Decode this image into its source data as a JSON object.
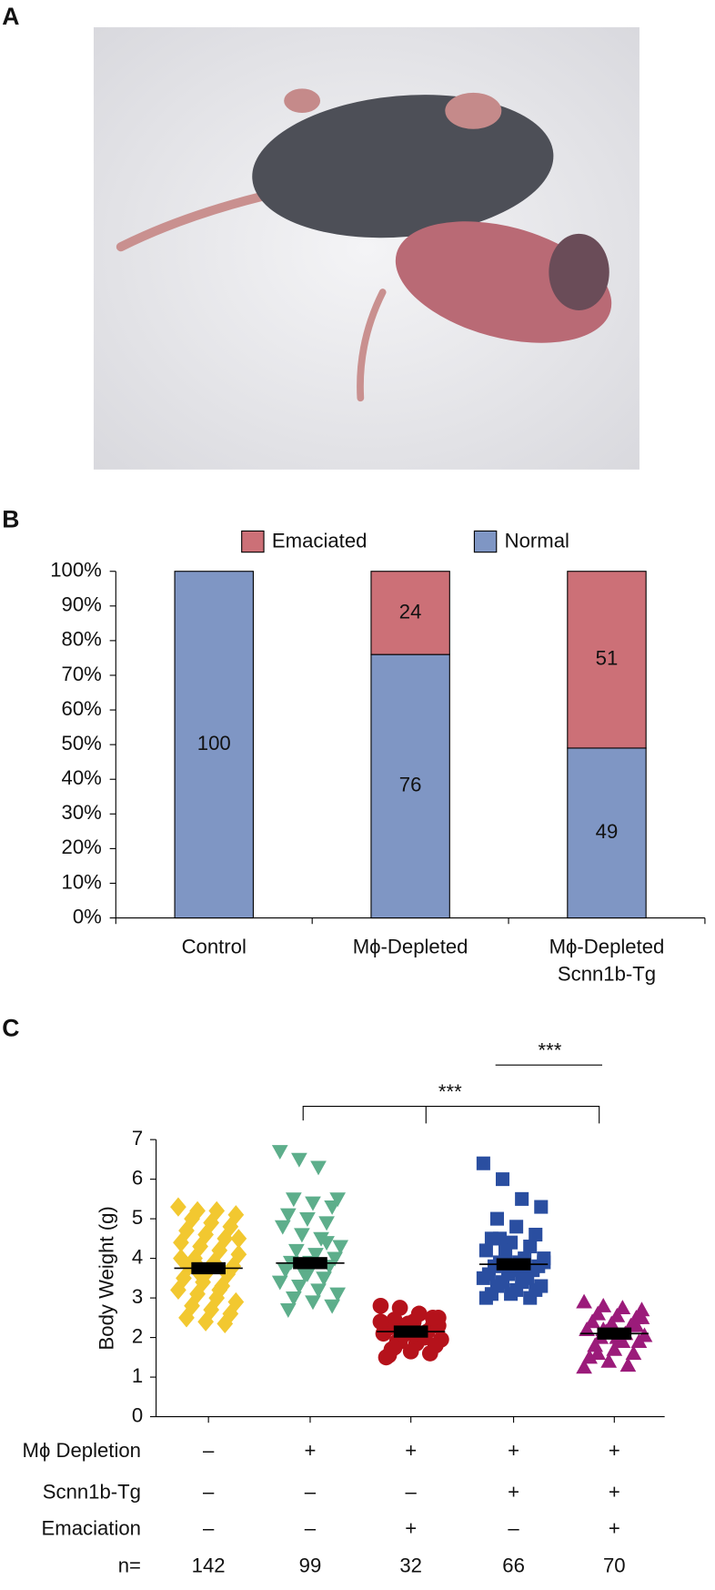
{
  "panel_labels": [
    "A",
    "B",
    "C"
  ],
  "chart_data": [
    {
      "type": "bar",
      "stacked": true,
      "legend_position": "top",
      "categories": [
        [
          "Control"
        ],
        [
          "Mϕ-Depleted"
        ],
        [
          "Mϕ-Depleted",
          "Scnn1b-Tg"
        ]
      ],
      "series": [
        {
          "name": "Normal",
          "color": "#7f96c4",
          "values": [
            100,
            76,
            49
          ]
        },
        {
          "name": "Emaciated",
          "color": "#cc7077",
          "values": [
            0,
            24,
            51
          ]
        }
      ],
      "ylim": [
        0,
        100
      ],
      "yticks": [
        {
          "value": 0,
          "label": "0%"
        },
        {
          "value": 10,
          "label": "10%"
        },
        {
          "value": 20,
          "label": "20%"
        },
        {
          "value": 30,
          "label": "30%"
        },
        {
          "value": 40,
          "label": "40%"
        },
        {
          "value": 50,
          "label": "50%"
        },
        {
          "value": 60,
          "label": "60%"
        },
        {
          "value": 70,
          "label": "70%"
        },
        {
          "value": 80,
          "label": "80%"
        },
        {
          "value": 90,
          "label": "90%"
        },
        {
          "value": 100,
          "label": "100%"
        }
      ]
    },
    {
      "type": "dotplot",
      "ylabel": "Body Weight (g)",
      "ylim": [
        0,
        7
      ],
      "yticks": [
        0,
        1,
        2,
        3,
        4,
        5,
        6,
        7
      ],
      "groups": [
        {
          "marker": "diamond",
          "color": "#f2c830",
          "mean": 3.75,
          "values": [
            5.3,
            5.2,
            5.2,
            5.1,
            5.0,
            4.9,
            4.8,
            4.7,
            4.6,
            4.5,
            4.4,
            4.3,
            4.2,
            4.1,
            4.0,
            3.9,
            3.8,
            3.8,
            3.7,
            3.6,
            3.5,
            3.4,
            3.3,
            3.2,
            3.1,
            3.0,
            2.9,
            2.8,
            2.7,
            2.6,
            2.5,
            2.4,
            2.35,
            4.0,
            3.6,
            3.2,
            4.5,
            3.9
          ]
        },
        {
          "marker": "triangle-down",
          "color": "#5dae8b",
          "mean": 3.88,
          "values": [
            6.7,
            6.5,
            6.3,
            5.5,
            5.5,
            5.4,
            5.3,
            5.1,
            5.0,
            4.9,
            4.8,
            4.6,
            4.5,
            4.3,
            4.2,
            4.1,
            4.0,
            3.9,
            3.9,
            3.8,
            3.7,
            3.6,
            3.5,
            3.4,
            3.3,
            3.2,
            3.1,
            3.0,
            2.9,
            2.8,
            2.7,
            3.6,
            4.4
          ]
        },
        {
          "marker": "circle",
          "color": "#b5121b",
          "mean": 2.15,
          "values": [
            2.8,
            2.75,
            2.6,
            2.5,
            2.45,
            2.4,
            2.3,
            2.25,
            2.2,
            2.15,
            2.1,
            2.05,
            2.0,
            1.95,
            1.9,
            1.85,
            1.8,
            1.7,
            1.65,
            1.6,
            1.5,
            2.2,
            2.0,
            2.4,
            1.9,
            2.6,
            2.3,
            1.75,
            2.1,
            2.5,
            1.55,
            2.35
          ]
        },
        {
          "marker": "square",
          "color": "#2a4ea0",
          "mean": 3.85,
          "values": [
            6.4,
            6.0,
            5.5,
            5.3,
            5.0,
            4.8,
            4.6,
            4.5,
            4.4,
            4.3,
            4.2,
            4.1,
            4.0,
            4.0,
            3.9,
            3.9,
            3.8,
            3.8,
            3.7,
            3.7,
            3.6,
            3.6,
            3.5,
            3.5,
            3.4,
            3.4,
            3.3,
            3.3,
            3.2,
            3.2,
            3.1,
            3.1,
            3.0,
            3.0,
            4.2,
            3.6,
            3.9,
            4.5
          ]
        },
        {
          "marker": "triangle-up",
          "color": "#9b1b7a",
          "mean": 2.1,
          "values": [
            2.9,
            2.8,
            2.75,
            2.7,
            2.6,
            2.55,
            2.5,
            2.4,
            2.35,
            2.3,
            2.2,
            2.15,
            2.1,
            2.05,
            2.0,
            1.95,
            1.9,
            1.8,
            1.7,
            1.6,
            1.5,
            1.4,
            1.3,
            1.25,
            2.2,
            1.9,
            2.5,
            1.6,
            2.0,
            2.3
          ]
        }
      ],
      "significance": [
        "***",
        "***"
      ],
      "table": [
        {
          "label": "Mϕ Depletion",
          "cells": [
            "–",
            "+",
            "+",
            "+",
            "+"
          ]
        },
        {
          "label": "Scnn1b-Tg",
          "cells": [
            "–",
            "–",
            "–",
            "+",
            "+"
          ]
        },
        {
          "label": "Emaciation",
          "cells": [
            "–",
            "–",
            "+",
            "–",
            "+"
          ]
        },
        {
          "label": "n=",
          "cells": [
            142,
            99,
            32,
            66,
            70
          ]
        }
      ]
    }
  ]
}
